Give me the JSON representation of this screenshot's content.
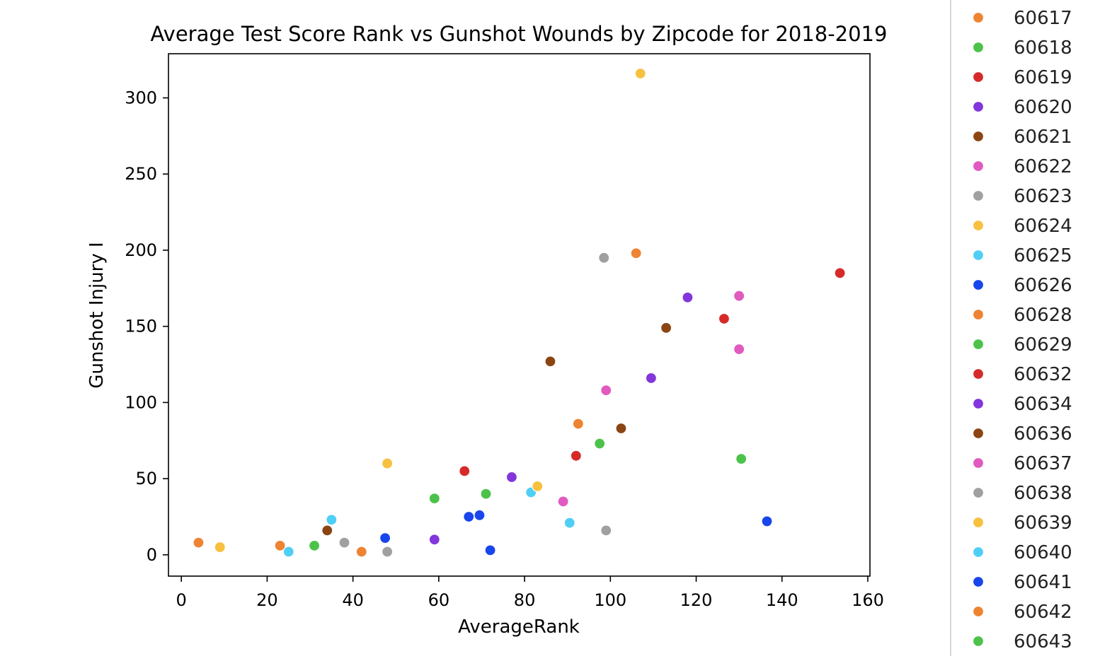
{
  "chart_data": {
    "type": "scatter",
    "title": "Average Test Score Rank vs Gunshot Wounds by Zipcode for 2018-2019",
    "xlabel": "AverageRank",
    "ylabel": "Gunshot Injury I",
    "xlim": [
      -3,
      160.5
    ],
    "ylim": [
      -14,
      329
    ],
    "xticks": [
      0,
      20,
      40,
      60,
      80,
      100,
      120,
      140,
      160
    ],
    "yticks": [
      0,
      50,
      100,
      150,
      200,
      250,
      300
    ],
    "grid": false,
    "legend_placement": "right",
    "legend": [
      {
        "label": "60617",
        "color": "#ee8433"
      },
      {
        "label": "60618",
        "color": "#4cc24a"
      },
      {
        "label": "60619",
        "color": "#d62a2a"
      },
      {
        "label": "60620",
        "color": "#8236dc"
      },
      {
        "label": "60621",
        "color": "#8b4513"
      },
      {
        "label": "60622",
        "color": "#e05ac0"
      },
      {
        "label": "60623",
        "color": "#a0a0a0"
      },
      {
        "label": "60624",
        "color": "#f7c13f"
      },
      {
        "label": "60625",
        "color": "#4fcff5"
      },
      {
        "label": "60626",
        "color": "#1846ec"
      },
      {
        "label": "60628",
        "color": "#ee8433"
      },
      {
        "label": "60629",
        "color": "#4cc24a"
      },
      {
        "label": "60632",
        "color": "#d62a2a"
      },
      {
        "label": "60634",
        "color": "#8236dc"
      },
      {
        "label": "60636",
        "color": "#8b4513"
      },
      {
        "label": "60637",
        "color": "#e05ac0"
      },
      {
        "label": "60638",
        "color": "#a0a0a0"
      },
      {
        "label": "60639",
        "color": "#f7c13f"
      },
      {
        "label": "60640",
        "color": "#4fcff5"
      },
      {
        "label": "60641",
        "color": "#1846ec"
      },
      {
        "label": "60642",
        "color": "#ee8433"
      },
      {
        "label": "60643",
        "color": "#4cc24a"
      }
    ],
    "points": [
      {
        "x": 4,
        "y": 8,
        "color": "#ee8433"
      },
      {
        "x": 9,
        "y": 5,
        "color": "#f7c13f"
      },
      {
        "x": 23,
        "y": 6,
        "color": "#ee8433"
      },
      {
        "x": 25,
        "y": 2,
        "color": "#4fcff5"
      },
      {
        "x": 31,
        "y": 6,
        "color": "#4cc24a"
      },
      {
        "x": 34,
        "y": 16,
        "color": "#8b4513"
      },
      {
        "x": 35,
        "y": 23,
        "color": "#4fcff5"
      },
      {
        "x": 38,
        "y": 8,
        "color": "#a0a0a0"
      },
      {
        "x": 42,
        "y": 2,
        "color": "#ee8433"
      },
      {
        "x": 47.5,
        "y": 11,
        "color": "#1846ec"
      },
      {
        "x": 48,
        "y": 2,
        "color": "#a0a0a0"
      },
      {
        "x": 48,
        "y": 60,
        "color": "#f7c13f"
      },
      {
        "x": 59,
        "y": 10,
        "color": "#8236dc"
      },
      {
        "x": 59,
        "y": 37,
        "color": "#4cc24a"
      },
      {
        "x": 66,
        "y": 55,
        "color": "#d62a2a"
      },
      {
        "x": 67,
        "y": 25,
        "color": "#1846ec"
      },
      {
        "x": 69.5,
        "y": 26,
        "color": "#1846ec"
      },
      {
        "x": 71,
        "y": 40,
        "color": "#4cc24a"
      },
      {
        "x": 72,
        "y": 3,
        "color": "#1846ec"
      },
      {
        "x": 77,
        "y": 51,
        "color": "#8236dc"
      },
      {
        "x": 81.5,
        "y": 41,
        "color": "#4fcff5"
      },
      {
        "x": 83,
        "y": 45,
        "color": "#f7c13f"
      },
      {
        "x": 86,
        "y": 127,
        "color": "#8b4513"
      },
      {
        "x": 89,
        "y": 35,
        "color": "#e05ac0"
      },
      {
        "x": 90.5,
        "y": 21,
        "color": "#4fcff5"
      },
      {
        "x": 92,
        "y": 65,
        "color": "#d62a2a"
      },
      {
        "x": 92.5,
        "y": 86,
        "color": "#ee8433"
      },
      {
        "x": 97.5,
        "y": 73,
        "color": "#4cc24a"
      },
      {
        "x": 98.5,
        "y": 195,
        "color": "#a0a0a0"
      },
      {
        "x": 99,
        "y": 108,
        "color": "#e05ac0"
      },
      {
        "x": 99,
        "y": 16,
        "color": "#a0a0a0"
      },
      {
        "x": 102.5,
        "y": 83,
        "color": "#8b4513"
      },
      {
        "x": 106,
        "y": 198,
        "color": "#ee8433"
      },
      {
        "x": 107,
        "y": 316,
        "color": "#f7c13f"
      },
      {
        "x": 109.5,
        "y": 116,
        "color": "#8236dc"
      },
      {
        "x": 113,
        "y": 149,
        "color": "#8b4513"
      },
      {
        "x": 118,
        "y": 169,
        "color": "#8236dc"
      },
      {
        "x": 126.5,
        "y": 155,
        "color": "#d62a2a"
      },
      {
        "x": 130,
        "y": 135,
        "color": "#e05ac0"
      },
      {
        "x": 130,
        "y": 170,
        "color": "#e05ac0"
      },
      {
        "x": 130.5,
        "y": 63,
        "color": "#4cc24a"
      },
      {
        "x": 136.5,
        "y": 22,
        "color": "#1846ec"
      },
      {
        "x": 153.5,
        "y": 185,
        "color": "#d62a2a"
      }
    ]
  }
}
